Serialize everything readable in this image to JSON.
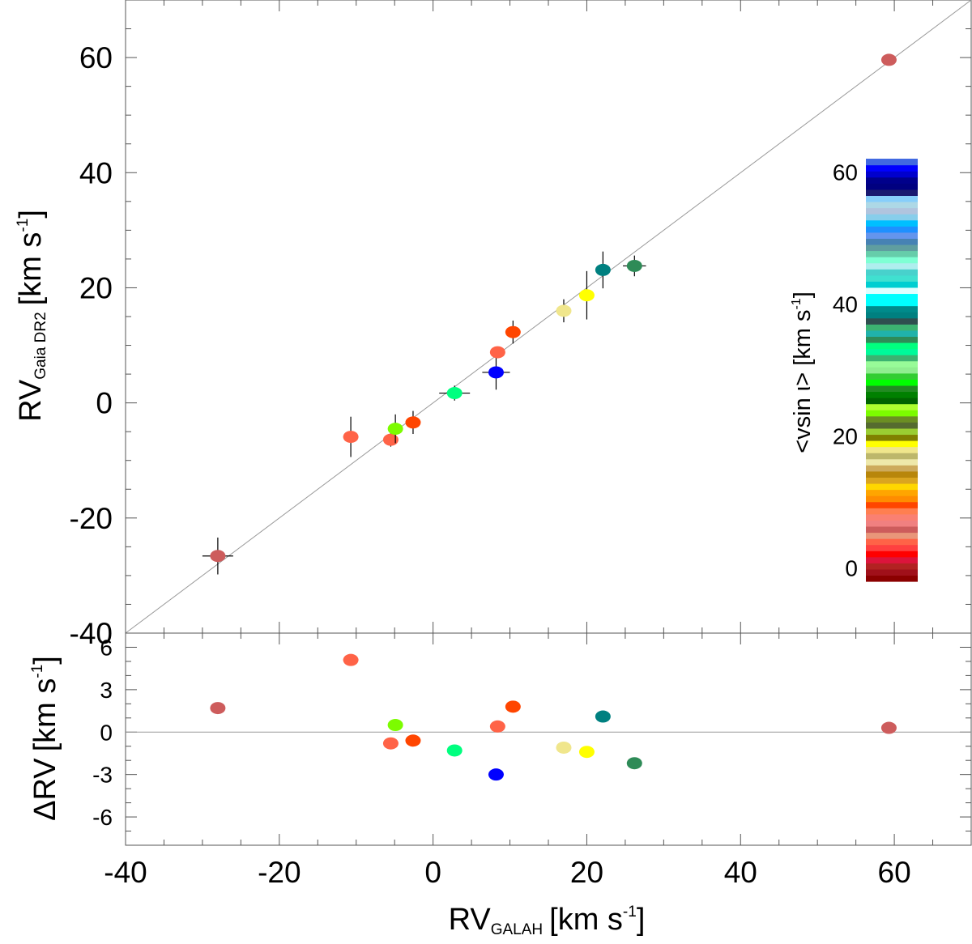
{
  "chart_data": [
    {
      "type": "scatter",
      "panel": "top",
      "xlabel": {
        "main": "RV",
        "sub": "GALAH",
        "unit": "[km s",
        "unit_exp": "-1",
        "unit_end": "]"
      },
      "ylabel": {
        "main": "RV",
        "sub": "Gaia DR2",
        "unit": "[km s",
        "unit_exp": "-1",
        "unit_end": "]"
      },
      "xlim": [
        -40,
        70
      ],
      "ylim": [
        -40,
        70
      ],
      "x_ticks": [
        "-40",
        "-20",
        "0",
        "20",
        "40",
        "60"
      ],
      "y_ticks": [
        "-40",
        "-20",
        "0",
        "20",
        "40",
        "60"
      ],
      "reference_line": "y = x",
      "points": [
        {
          "x": -28.0,
          "y": -26.6,
          "xerr": 2.0,
          "yerr": 3.2,
          "color": "#cd5c5c"
        },
        {
          "x": -10.7,
          "y": -5.9,
          "xerr": 0,
          "yerr": 3.5,
          "color": "#ff6347"
        },
        {
          "x": -5.5,
          "y": -6.4,
          "xerr": 0.8,
          "yerr": 1.2,
          "color": "#ff6347"
        },
        {
          "x": -4.9,
          "y": -4.5,
          "xerr": 0,
          "yerr": 2.5,
          "color": "#7cfc00"
        },
        {
          "x": -2.6,
          "y": -3.4,
          "xerr": 0,
          "yerr": 2.0,
          "color": "#ff4500"
        },
        {
          "x": 2.8,
          "y": 1.7,
          "xerr": 2.0,
          "yerr": 1.3,
          "color": "#00ff7f"
        },
        {
          "x": 8.2,
          "y": 5.3,
          "xerr": 1.8,
          "yerr": 3.0,
          "color": "#0000ff"
        },
        {
          "x": 8.4,
          "y": 8.8,
          "xerr": 0,
          "yerr": 1.0,
          "color": "#ff6347"
        },
        {
          "x": 10.4,
          "y": 12.3,
          "xerr": 0,
          "yerr": 2.0,
          "color": "#ff4500"
        },
        {
          "x": 17.0,
          "y": 16.0,
          "xerr": 0,
          "yerr": 2.0,
          "color": "#f0e68c"
        },
        {
          "x": 20.0,
          "y": 18.7,
          "xerr": 0,
          "yerr": 4.2,
          "color": "#ffff00"
        },
        {
          "x": 22.1,
          "y": 23.1,
          "xerr": 0,
          "yerr": 3.2,
          "color": "#008080"
        },
        {
          "x": 26.2,
          "y": 23.8,
          "xerr": 1.5,
          "yerr": 1.8,
          "color": "#2e8b57"
        },
        {
          "x": 59.3,
          "y": 59.6,
          "xerr": 0,
          "yerr": 0,
          "color": "#cd5c5c"
        }
      ],
      "colorbar": {
        "label": "<vsin ι> [km s",
        "label_exp": "-1",
        "label_end": "]",
        "range": [
          -2,
          62
        ],
        "ticks": [
          "0",
          "20",
          "40",
          "60"
        ],
        "colors": [
          "#8b0000",
          "#a0101a",
          "#b22222",
          "#dc143c",
          "#ff0000",
          "#ff4040",
          "#ff6347",
          "#e9967a",
          "#cd5c5c",
          "#f08080",
          "#fa8072",
          "#ff7f50",
          "#ff4500",
          "#ff8c00",
          "#ffa500",
          "#ffd700",
          "#daa520",
          "#b8860b",
          "#cdaa5c",
          "#eee8aa",
          "#bdb76b",
          "#f0e68c",
          "#ffff00",
          "#808000",
          "#9acd32",
          "#556b2f",
          "#6b8e23",
          "#7cfc00",
          "#adff2f",
          "#006400",
          "#008000",
          "#228b22",
          "#00ff00",
          "#32cd32",
          "#90ee90",
          "#98fb98",
          "#3cb371",
          "#00fa9a",
          "#00ff7f",
          "#2e8b57",
          "#20b2aa",
          "#3cb371",
          "#2f4f4f",
          "#008080",
          "#008b8b",
          "#00ffff",
          "#00ffff",
          "#e0ffff",
          "#00ced1",
          "#40e0d0",
          "#48d1cc",
          "#afeeee",
          "#7fffd4",
          "#66cdaa",
          "#5f9ea0",
          "#4682b4",
          "#6495ed",
          "#1e90ff",
          "#00bfff",
          "#87ceeb",
          "#b0c4de",
          "#add8e6",
          "#87cefa",
          "#191970",
          "#000080",
          "#00008b",
          "#0000cd",
          "#0000ff",
          "#4169e1"
        ]
      }
    },
    {
      "type": "scatter",
      "panel": "bottom",
      "ylabel": {
        "main": "ΔRV",
        "unit": "[km s",
        "unit_exp": "-1",
        "unit_end": "]"
      },
      "ylim": [
        -8,
        7
      ],
      "y_ticks": [
        "-6",
        "-3",
        "0",
        "3",
        "6"
      ],
      "reference_line": "y = 0",
      "points": [
        {
          "x": -28.0,
          "y": 1.7,
          "color": "#cd5c5c"
        },
        {
          "x": -10.7,
          "y": 5.1,
          "color": "#ff6347"
        },
        {
          "x": -5.5,
          "y": -0.8,
          "color": "#ff6347"
        },
        {
          "x": -4.9,
          "y": 0.5,
          "color": "#7cfc00"
        },
        {
          "x": -2.6,
          "y": -0.6,
          "color": "#ff4500"
        },
        {
          "x": 2.8,
          "y": -1.3,
          "color": "#00ff7f"
        },
        {
          "x": 8.2,
          "y": -3.0,
          "color": "#0000ff"
        },
        {
          "x": 8.4,
          "y": 0.4,
          "color": "#ff6347"
        },
        {
          "x": 10.4,
          "y": 1.8,
          "color": "#ff4500"
        },
        {
          "x": 17.0,
          "y": -1.1,
          "color": "#f0e68c"
        },
        {
          "x": 20.0,
          "y": -1.4,
          "color": "#ffff00"
        },
        {
          "x": 22.1,
          "y": 1.1,
          "color": "#008080"
        },
        {
          "x": 26.2,
          "y": -2.2,
          "color": "#2e8b57"
        },
        {
          "x": 59.3,
          "y": 0.3,
          "color": "#cd5c5c"
        }
      ]
    }
  ]
}
